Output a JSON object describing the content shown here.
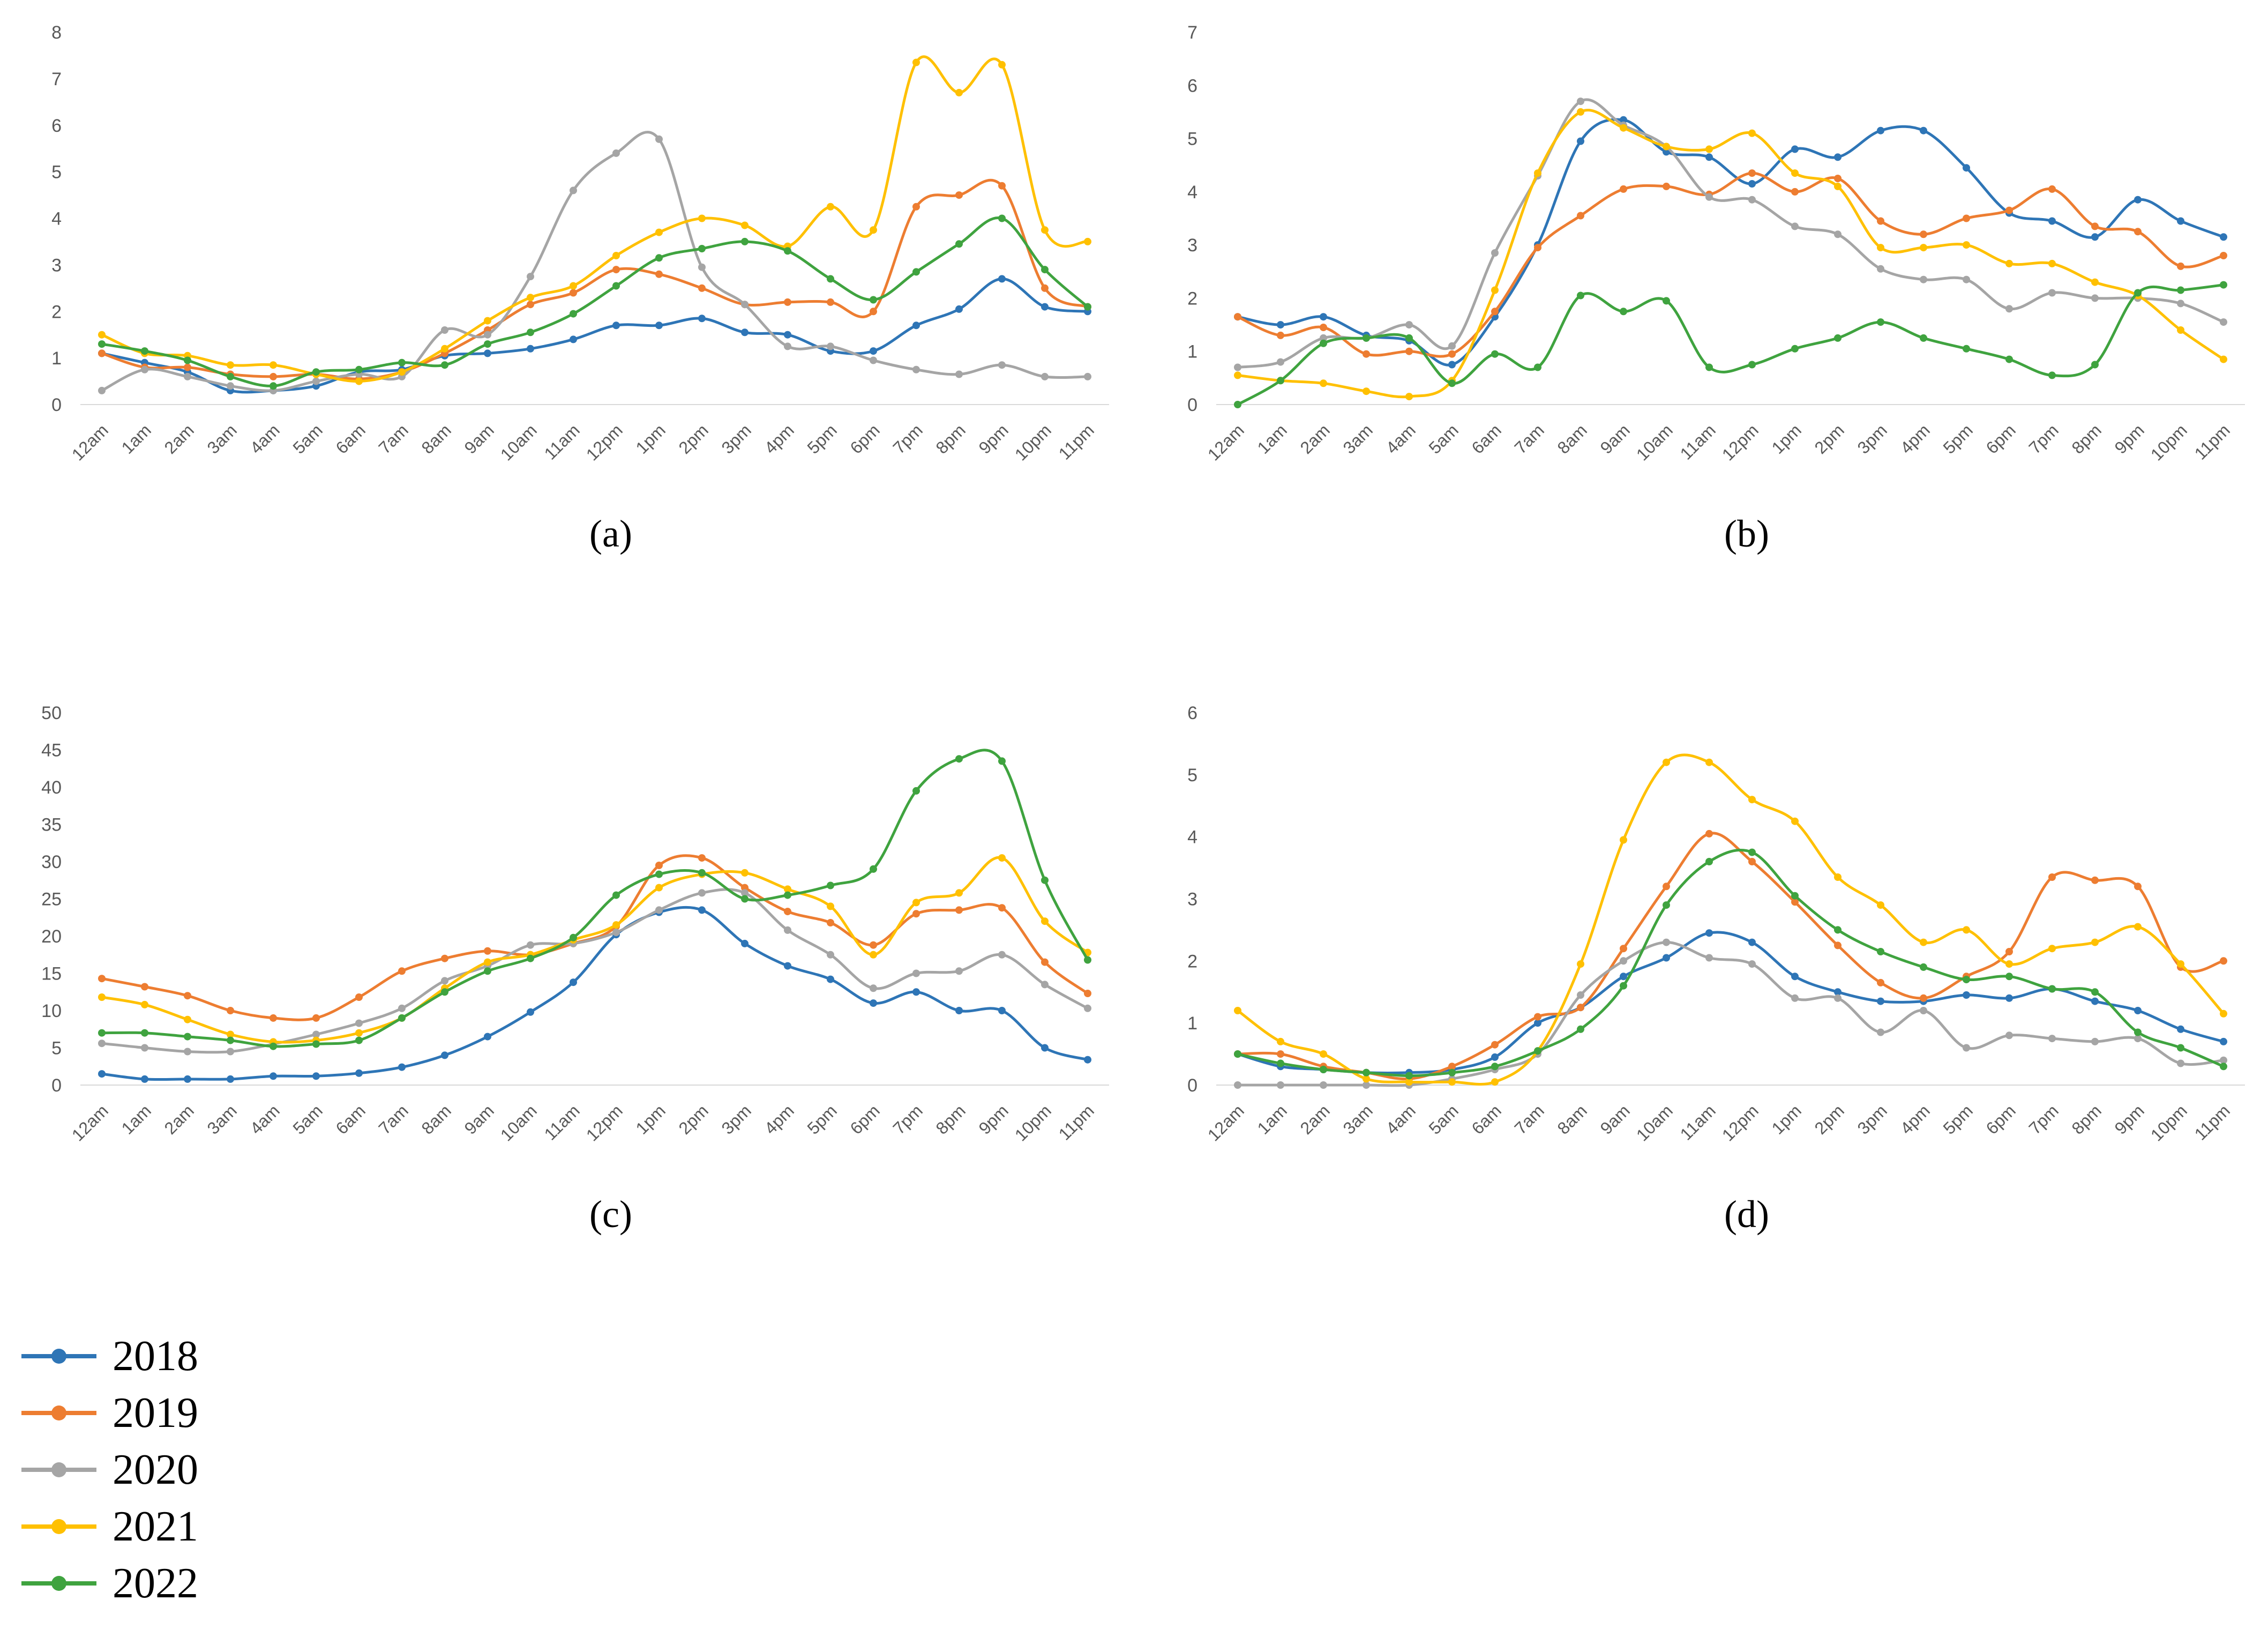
{
  "chart_data": [
    {
      "id": "a",
      "type": "line",
      "caption": "(a)",
      "ylim": [
        0,
        8
      ],
      "yticks": [
        0,
        1,
        2,
        3,
        4,
        5,
        6,
        7,
        8
      ],
      "categories": [
        "12am",
        "1am",
        "2am",
        "3am",
        "4am",
        "5am",
        "6am",
        "7am",
        "8am",
        "9am",
        "10am",
        "11am",
        "12pm",
        "1pm",
        "2pm",
        "3pm",
        "4pm",
        "5pm",
        "6pm",
        "7pm",
        "8pm",
        "9pm",
        "10pm",
        "11pm"
      ],
      "series": [
        {
          "name": "2018",
          "values": [
            1.1,
            0.9,
            0.7,
            0.3,
            0.3,
            0.4,
            0.7,
            0.75,
            1.05,
            1.1,
            1.2,
            1.4,
            1.7,
            1.7,
            1.85,
            1.55,
            1.5,
            1.15,
            1.15,
            1.7,
            2.05,
            2.7,
            2.1,
            2.0
          ]
        },
        {
          "name": "2019",
          "values": [
            1.1,
            0.8,
            0.8,
            0.65,
            0.6,
            0.65,
            0.55,
            0.7,
            1.1,
            1.6,
            2.15,
            2.4,
            2.9,
            2.8,
            2.5,
            2.15,
            2.2,
            2.2,
            2.0,
            4.25,
            4.5,
            4.7,
            2.5,
            2.1
          ]
        },
        {
          "name": "2020",
          "values": [
            0.3,
            0.75,
            0.6,
            0.4,
            0.3,
            0.5,
            0.65,
            0.6,
            1.6,
            1.5,
            2.75,
            4.6,
            5.4,
            5.7,
            2.95,
            2.15,
            1.25,
            1.25,
            0.95,
            0.75,
            0.65,
            0.85,
            0.6,
            0.6
          ]
        },
        {
          "name": "2021",
          "values": [
            1.5,
            1.1,
            1.05,
            0.85,
            0.85,
            0.65,
            0.5,
            0.7,
            1.2,
            1.8,
            2.3,
            2.55,
            3.2,
            3.7,
            4.0,
            3.85,
            3.4,
            4.25,
            3.75,
            7.35,
            6.7,
            7.3,
            3.75,
            3.5
          ]
        },
        {
          "name": "2022",
          "values": [
            1.3,
            1.15,
            0.95,
            0.6,
            0.4,
            0.7,
            0.75,
            0.9,
            0.85,
            1.3,
            1.55,
            1.95,
            2.55,
            3.15,
            3.35,
            3.5,
            3.3,
            2.7,
            2.25,
            2.85,
            3.45,
            4.0,
            2.9,
            2.1
          ]
        }
      ]
    },
    {
      "id": "b",
      "type": "line",
      "caption": "(b)",
      "ylim": [
        0,
        7
      ],
      "yticks": [
        0,
        1,
        2,
        3,
        4,
        5,
        6,
        7
      ],
      "categories": [
        "12am",
        "1am",
        "2am",
        "3am",
        "4am",
        "5am",
        "6am",
        "7am",
        "8am",
        "9am",
        "10am",
        "11am",
        "12pm",
        "1pm",
        "2pm",
        "3pm",
        "4pm",
        "5pm",
        "6pm",
        "7pm",
        "8pm",
        "9pm",
        "10pm",
        "11pm"
      ],
      "series": [
        {
          "name": "2018",
          "values": [
            1.65,
            1.5,
            1.65,
            1.3,
            1.2,
            0.75,
            1.65,
            3.0,
            4.95,
            5.35,
            4.75,
            4.65,
            4.15,
            4.8,
            4.65,
            5.15,
            5.15,
            4.45,
            3.6,
            3.45,
            3.15,
            3.85,
            3.45,
            3.15
          ]
        },
        {
          "name": "2019",
          "values": [
            1.65,
            1.3,
            1.45,
            0.95,
            1.0,
            0.95,
            1.75,
            2.95,
            3.55,
            4.05,
            4.1,
            3.95,
            4.35,
            4.0,
            4.25,
            3.45,
            3.2,
            3.5,
            3.65,
            4.05,
            3.35,
            3.25,
            2.6,
            2.8
          ]
        },
        {
          "name": "2020",
          "values": [
            0.7,
            0.8,
            1.25,
            1.25,
            1.5,
            1.1,
            2.85,
            4.3,
            5.7,
            5.25,
            4.85,
            3.9,
            3.85,
            3.35,
            3.2,
            2.55,
            2.35,
            2.35,
            1.8,
            2.1,
            2.0,
            2.0,
            1.9,
            1.55
          ]
        },
        {
          "name": "2021",
          "values": [
            0.55,
            0.45,
            0.4,
            0.25,
            0.15,
            0.45,
            2.15,
            4.35,
            5.5,
            5.2,
            4.85,
            4.8,
            5.1,
            4.35,
            4.1,
            2.95,
            2.95,
            3.0,
            2.65,
            2.65,
            2.3,
            2.05,
            1.4,
            0.85
          ]
        },
        {
          "name": "2022",
          "values": [
            0.0,
            0.45,
            1.15,
            1.25,
            1.25,
            0.4,
            0.95,
            0.7,
            2.05,
            1.75,
            1.95,
            0.7,
            0.75,
            1.05,
            1.25,
            1.55,
            1.25,
            1.05,
            0.85,
            0.55,
            0.75,
            2.1,
            2.15,
            2.25
          ]
        }
      ]
    },
    {
      "id": "c",
      "type": "line",
      "caption": "(c)",
      "ylim": [
        0,
        50
      ],
      "yticks": [
        0,
        5,
        10,
        15,
        20,
        25,
        30,
        35,
        40,
        45,
        50
      ],
      "categories": [
        "12am",
        "1am",
        "2am",
        "3am",
        "4am",
        "5am",
        "6am",
        "7am",
        "8am",
        "9am",
        "10am",
        "11am",
        "12pm",
        "1pm",
        "2pm",
        "3pm",
        "4pm",
        "5pm",
        "6pm",
        "7pm",
        "8pm",
        "9pm",
        "10pm",
        "11pm"
      ],
      "series": [
        {
          "name": "2018",
          "values": [
            1.5,
            0.8,
            0.8,
            0.8,
            1.2,
            1.2,
            1.6,
            2.4,
            4.0,
            6.5,
            9.8,
            13.8,
            20.2,
            23.2,
            23.5,
            19.0,
            16.0,
            14.2,
            11.0,
            12.5,
            10.0,
            10.0,
            5.0,
            3.4
          ]
        },
        {
          "name": "2019",
          "values": [
            14.3,
            13.2,
            12.0,
            10.0,
            9.0,
            9.0,
            11.8,
            15.3,
            17.0,
            18.0,
            17.5,
            19.0,
            21.3,
            29.5,
            30.5,
            26.5,
            23.3,
            21.8,
            18.8,
            23.0,
            23.5,
            23.8,
            16.5,
            12.3
          ]
        },
        {
          "name": "2020",
          "values": [
            5.6,
            5.0,
            4.5,
            4.5,
            5.5,
            6.8,
            8.3,
            10.3,
            14.0,
            16.0,
            18.8,
            19.0,
            20.5,
            23.5,
            25.8,
            25.8,
            20.8,
            17.5,
            13.0,
            15.0,
            15.3,
            17.5,
            13.5,
            10.3
          ]
        },
        {
          "name": "2021",
          "values": [
            11.8,
            10.8,
            8.8,
            6.8,
            5.8,
            6.0,
            7.0,
            9.0,
            13.0,
            16.5,
            17.5,
            19.5,
            21.5,
            26.5,
            28.3,
            28.5,
            26.3,
            24.0,
            17.5,
            24.5,
            25.8,
            30.5,
            22.0,
            17.8
          ]
        },
        {
          "name": "2022",
          "values": [
            7.0,
            7.0,
            6.5,
            6.0,
            5.2,
            5.5,
            6.0,
            9.0,
            12.5,
            15.3,
            17.0,
            19.8,
            25.5,
            28.3,
            28.5,
            25.0,
            25.5,
            26.8,
            29.0,
            39.5,
            43.8,
            43.5,
            27.5,
            16.8
          ]
        }
      ]
    },
    {
      "id": "d",
      "type": "line",
      "caption": "(d)",
      "ylim": [
        0,
        6
      ],
      "yticks": [
        0,
        1,
        2,
        3,
        4,
        5,
        6
      ],
      "categories": [
        "12am",
        "1am",
        "2am",
        "3am",
        "4am",
        "5am",
        "6am",
        "7am",
        "8am",
        "9am",
        "10am",
        "11am",
        "12pm",
        "1pm",
        "2pm",
        "3pm",
        "4pm",
        "5pm",
        "6pm",
        "7pm",
        "8pm",
        "9pm",
        "10pm",
        "11pm"
      ],
      "series": [
        {
          "name": "2018",
          "values": [
            0.5,
            0.3,
            0.25,
            0.2,
            0.2,
            0.25,
            0.45,
            1.0,
            1.25,
            1.75,
            2.05,
            2.45,
            2.3,
            1.75,
            1.5,
            1.35,
            1.35,
            1.45,
            1.4,
            1.55,
            1.35,
            1.2,
            0.9,
            0.7
          ]
        },
        {
          "name": "2019",
          "values": [
            0.5,
            0.5,
            0.3,
            0.2,
            0.1,
            0.3,
            0.65,
            1.1,
            1.25,
            2.2,
            3.2,
            4.05,
            3.6,
            2.95,
            2.25,
            1.65,
            1.4,
            1.75,
            2.15,
            3.35,
            3.3,
            3.2,
            1.9,
            2.0
          ]
        },
        {
          "name": "2020",
          "values": [
            0.0,
            0.0,
            0.0,
            0.0,
            0.0,
            0.1,
            0.25,
            0.5,
            1.45,
            2.0,
            2.3,
            2.05,
            1.95,
            1.4,
            1.4,
            0.85,
            1.2,
            0.6,
            0.8,
            0.75,
            0.7,
            0.75,
            0.35,
            0.4
          ]
        },
        {
          "name": "2021",
          "values": [
            1.2,
            0.7,
            0.5,
            0.1,
            0.05,
            0.05,
            0.05,
            0.55,
            1.95,
            3.95,
            5.2,
            5.2,
            4.6,
            4.25,
            3.35,
            2.9,
            2.3,
            2.5,
            1.95,
            2.2,
            2.3,
            2.55,
            1.95,
            1.15
          ]
        },
        {
          "name": "2022",
          "values": [
            0.5,
            0.35,
            0.25,
            0.2,
            0.15,
            0.2,
            0.3,
            0.55,
            0.9,
            1.6,
            2.9,
            3.6,
            3.75,
            3.05,
            2.5,
            2.15,
            1.9,
            1.7,
            1.75,
            1.55,
            1.5,
            0.85,
            0.6,
            0.3
          ]
        }
      ]
    }
  ],
  "legend": [
    {
      "label": "2018",
      "color": "#2e75b6"
    },
    {
      "label": "2019",
      "color": "#ed7d31"
    },
    {
      "label": "2020",
      "color": "#a5a5a5"
    },
    {
      "label": "2021",
      "color": "#ffc000"
    },
    {
      "label": "2022",
      "color": "#3fa33f"
    }
  ]
}
